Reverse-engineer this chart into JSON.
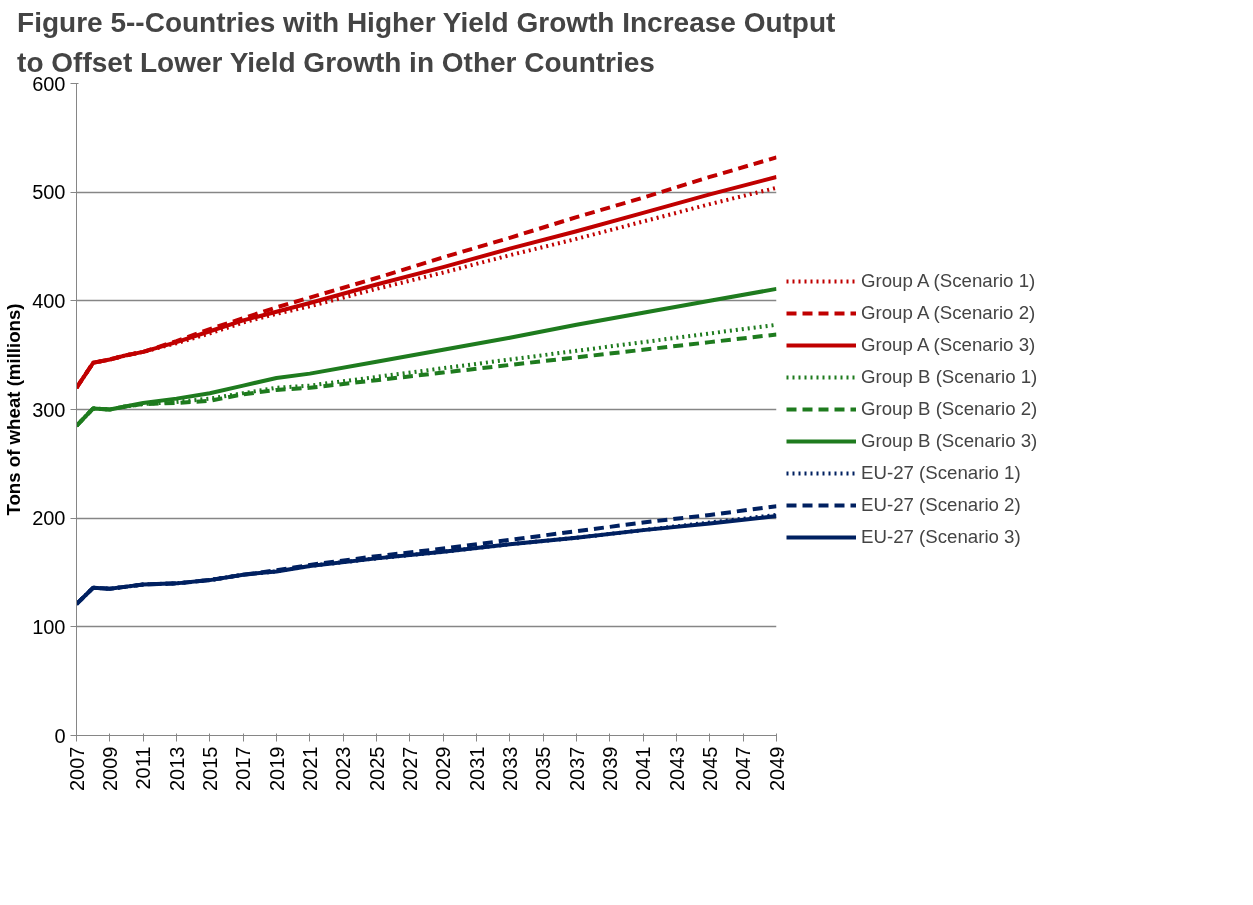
{
  "chart_data": {
    "type": "line",
    "title": "Figure 5--Countries with Higher Yield Growth Increase Output\nto Offset Lower Yield Growth in Other Countries",
    "ylabel": "Tons of wheat (millions)",
    "x": [
      2007,
      2008,
      2009,
      2010,
      2011,
      2013,
      2015,
      2017,
      2019,
      2021,
      2025,
      2029,
      2033,
      2037,
      2041,
      2045,
      2049
    ],
    "xlim": [
      2007,
      2049
    ],
    "xticks": [
      2007,
      2009,
      2011,
      2013,
      2015,
      2017,
      2019,
      2021,
      2023,
      2025,
      2027,
      2029,
      2031,
      2033,
      2035,
      2037,
      2039,
      2041,
      2043,
      2045,
      2047,
      2049
    ],
    "ylim": [
      0,
      600
    ],
    "yticks": [
      0,
      100,
      200,
      300,
      400,
      500,
      600
    ],
    "grid": "y",
    "legend": "right",
    "marker": "none",
    "series": [
      {
        "name": "Group A (Scenario 1)",
        "color": "#c00000",
        "line_style": "dotted",
        "values": [
          320,
          343,
          346,
          350,
          353,
          361,
          370,
          380,
          388,
          395,
          411,
          426,
          442,
          457,
          473,
          489,
          504
        ]
      },
      {
        "name": "Group A (Scenario 2)",
        "color": "#c00000",
        "line_style": "dashed",
        "values": [
          320,
          343,
          346,
          350,
          353,
          363,
          374,
          384,
          394,
          403,
          421,
          440,
          458,
          477,
          495,
          514,
          532
        ]
      },
      {
        "name": "Group A (Scenario 3)",
        "color": "#c00000",
        "line_style": "solid",
        "values": [
          320,
          343,
          346,
          350,
          353,
          362,
          372,
          382,
          390,
          398,
          415,
          431,
          448,
          464,
          481,
          498,
          514
        ]
      },
      {
        "name": "Group B (Scenario 1)",
        "color": "#1e7b1e",
        "line_style": "dotted",
        "values": [
          285,
          301,
          300,
          303,
          305,
          307,
          310,
          315,
          320,
          322,
          330,
          338,
          346,
          354,
          362,
          370,
          378
        ]
      },
      {
        "name": "Group B (Scenario 2)",
        "color": "#1e7b1e",
        "line_style": "dashed",
        "values": [
          285,
          301,
          300,
          303,
          305,
          306,
          308,
          314,
          318,
          320,
          327,
          334,
          341,
          348,
          355,
          362,
          369
        ]
      },
      {
        "name": "Group B (Scenario 3)",
        "color": "#1e7b1e",
        "line_style": "solid",
        "values": [
          285,
          301,
          300,
          303,
          306,
          310,
          315,
          322,
          329,
          333,
          344,
          355,
          366,
          378,
          389,
          400,
          411
        ]
      },
      {
        "name": "EU-27 (Scenario 1)",
        "color": "#002060",
        "line_style": "dotted",
        "values": [
          121,
          136,
          135,
          137,
          139,
          140,
          143,
          148,
          151,
          156,
          163,
          169,
          176,
          182,
          189,
          196,
          203
        ]
      },
      {
        "name": "EU-27 (Scenario 2)",
        "color": "#002060",
        "line_style": "dashed",
        "values": [
          121,
          136,
          135,
          137,
          139,
          140,
          143,
          148,
          152,
          157,
          165,
          172,
          180,
          188,
          196,
          203,
          211
        ]
      },
      {
        "name": "EU-27 (Scenario 3)",
        "color": "#002060",
        "line_style": "solid",
        "values": [
          121,
          136,
          135,
          137,
          139,
          140,
          143,
          148,
          151,
          156,
          163,
          169,
          176,
          182,
          189,
          195,
          202
        ]
      }
    ]
  }
}
